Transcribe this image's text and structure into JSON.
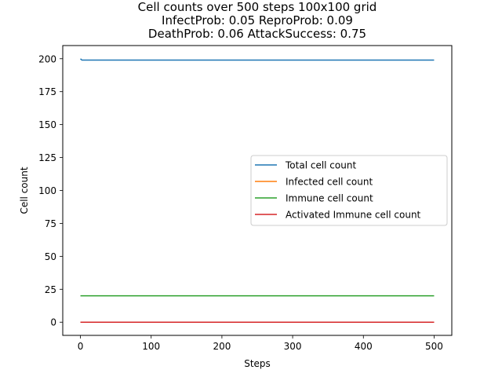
{
  "chart_data": {
    "type": "line",
    "title_lines": [
      "Cell counts over 500 steps 100x100 grid",
      "InfectProb: 0.05 ReproProb: 0.09",
      "DeathProb: 0.06 AttackSuccess: 0.75"
    ],
    "xlabel": "Steps",
    "ylabel": "Cell count",
    "xlim": [
      -25,
      525
    ],
    "ylim": [
      -10,
      210
    ],
    "xticks": [
      0,
      100,
      200,
      300,
      400,
      500
    ],
    "yticks": [
      0,
      25,
      50,
      75,
      100,
      125,
      150,
      175,
      200
    ],
    "grid": false,
    "legend_position": "center-right",
    "series": [
      {
        "name": "Total cell count",
        "color": "#1f77b4",
        "points": [
          [
            0,
            200
          ],
          [
            2,
            199
          ],
          [
            500,
            199
          ]
        ]
      },
      {
        "name": "Infected cell count",
        "color": "#ff7f0e",
        "points": [
          [
            0,
            0
          ],
          [
            500,
            0
          ]
        ]
      },
      {
        "name": "Immune cell count",
        "color": "#2ca02c",
        "points": [
          [
            0,
            20
          ],
          [
            500,
            20
          ]
        ]
      },
      {
        "name": "Activated Immune cell count",
        "color": "#d62728",
        "points": [
          [
            0,
            0
          ],
          [
            500,
            0
          ]
        ]
      }
    ]
  }
}
